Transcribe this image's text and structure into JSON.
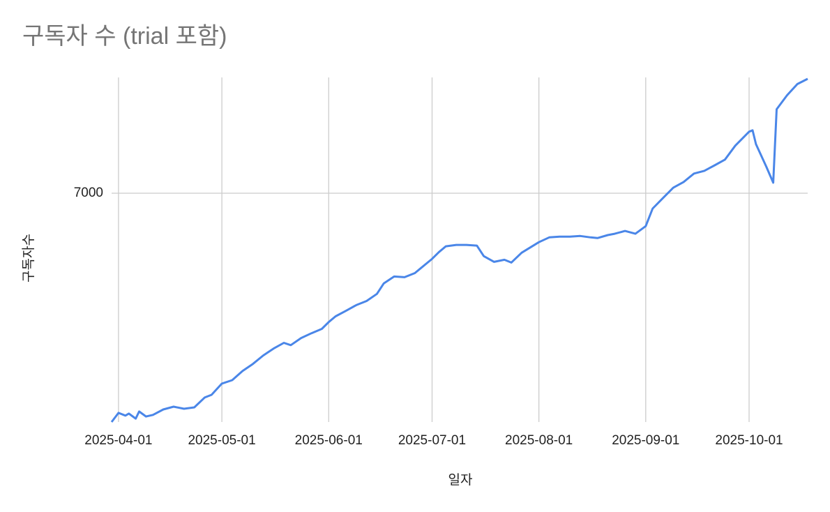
{
  "chart_data": {
    "type": "line",
    "title": "구독자 수 (trial 포함)",
    "x_label": "일자",
    "y_label": "구독자수",
    "x": [
      "2025-03-30",
      "2025-04-01",
      "2025-04-03",
      "2025-04-04",
      "2025-04-06",
      "2025-04-07",
      "2025-04-09",
      "2025-04-11",
      "2025-04-14",
      "2025-04-17",
      "2025-04-20",
      "2025-04-23",
      "2025-04-26",
      "2025-04-28",
      "2025-05-01",
      "2025-05-04",
      "2025-05-07",
      "2025-05-10",
      "2025-05-13",
      "2025-05-16",
      "2025-05-19",
      "2025-05-21",
      "2025-05-24",
      "2025-05-27",
      "2025-05-30",
      "2025-06-01",
      "2025-06-03",
      "2025-06-06",
      "2025-06-09",
      "2025-06-12",
      "2025-06-15",
      "2025-06-17",
      "2025-06-20",
      "2025-06-23",
      "2025-06-26",
      "2025-06-28",
      "2025-07-01",
      "2025-07-03",
      "2025-07-05",
      "2025-07-08",
      "2025-07-11",
      "2025-07-14",
      "2025-07-16",
      "2025-07-19",
      "2025-07-22",
      "2025-07-24",
      "2025-07-27",
      "2025-08-01",
      "2025-08-04",
      "2025-08-07",
      "2025-08-10",
      "2025-08-13",
      "2025-08-16",
      "2025-08-18",
      "2025-08-21",
      "2025-08-23",
      "2025-08-26",
      "2025-08-29",
      "2025-09-01",
      "2025-09-03",
      "2025-09-06",
      "2025-09-09",
      "2025-09-12",
      "2025-09-15",
      "2025-09-18",
      "2025-09-21",
      "2025-09-24",
      "2025-09-27",
      "2025-10-01",
      "2025-10-02",
      "2025-10-03",
      "2025-10-06",
      "2025-10-08",
      "2025-10-09",
      "2025-10-12",
      "2025-10-15",
      "2025-10-18"
    ],
    "series": [
      {
        "name": "구독자수",
        "color": "#4a86e8",
        "values": [
          6000,
          6040,
          6028,
          6037,
          6015,
          6046,
          6024,
          6031,
          6055,
          6067,
          6058,
          6064,
          6107,
          6119,
          6168,
          6183,
          6223,
          6254,
          6291,
          6321,
          6346,
          6336,
          6367,
          6388,
          6407,
          6437,
          6462,
          6486,
          6511,
          6529,
          6560,
          6606,
          6636,
          6633,
          6651,
          6676,
          6713,
          6743,
          6768,
          6774,
          6774,
          6771,
          6725,
          6700,
          6709,
          6697,
          6740,
          6786,
          6807,
          6810,
          6810,
          6813,
          6807,
          6804,
          6817,
          6823,
          6835,
          6823,
          6856,
          6933,
          6979,
          7024,
          7049,
          7086,
          7098,
          7122,
          7147,
          7208,
          7269,
          7275,
          7214,
          7116,
          7046,
          7367,
          7428,
          7477,
          7500
        ]
      }
    ],
    "xlim": [
      "2025-03-30",
      "2025-10-18"
    ],
    "xticks": [
      "2025-04-01",
      "2025-05-01",
      "2025-06-01",
      "2025-07-01",
      "2025-08-01",
      "2025-09-01",
      "2025-10-01"
    ],
    "ylim": [
      6000,
      7500
    ],
    "yticks": [
      7000
    ],
    "grid": true
  }
}
